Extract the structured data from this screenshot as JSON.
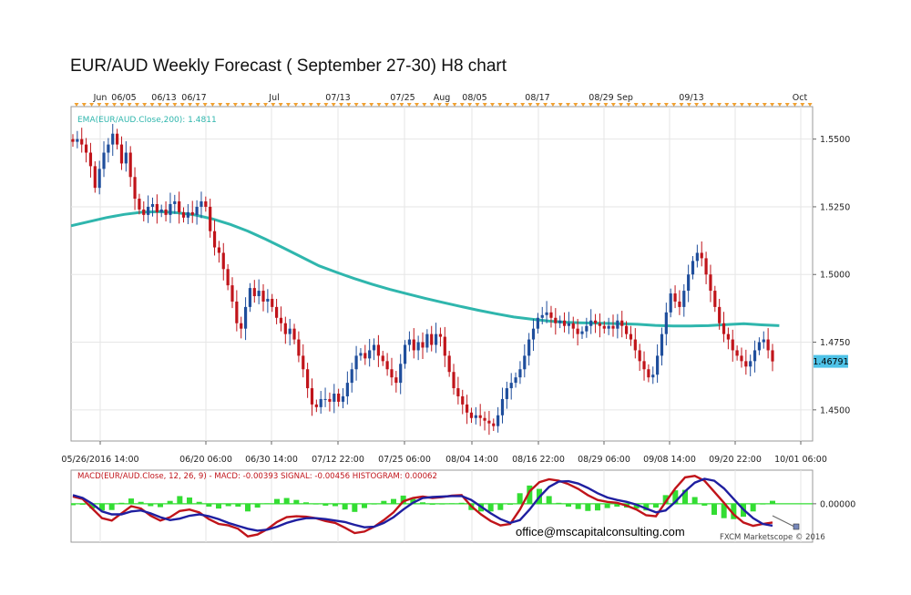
{
  "title": "EUR/AUD Weekly Forecast ( September 27-30) H8 chart",
  "colors": {
    "up": "#1f4e9c",
    "down": "#c0141a",
    "ema": "#2fb6ad",
    "macd": "#c0141a",
    "signal": "#1f1fa0",
    "histogram": "#33dd33",
    "price_badge": "#4fc3e8",
    "time_marker": "#f0a030"
  },
  "chart_data": [
    {
      "type": "candlestick",
      "title": "",
      "top_axis_labels": [
        "Jun",
        "06/05",
        "06/13",
        "06/17",
        "Jul",
        "07/13",
        "07/25",
        "Aug",
        "08/05",
        "08/17",
        "08/29",
        "Sep",
        "09/13",
        "Oct"
      ],
      "x_tick_labels": [
        "05/26/2016 14:00",
        "06/20 06:00",
        "06/30 14:00",
        "07/12 22:00",
        "07/25 06:00",
        "08/04 14:00",
        "08/16 22:00",
        "08/29 06:00",
        "09/08 14:00",
        "09/20 22:00",
        "10/01 06:00"
      ],
      "y_tick_labels": [
        "1.5500",
        "1.5250",
        "1.5000",
        "1.4750",
        "1.4500"
      ],
      "ylim": [
        1.4385,
        1.562
      ],
      "grid": true,
      "indicator_label": "EMA(EUR/AUD.Close,200): 1.4811",
      "last_price": "1.46791",
      "close_series": [
        1.549,
        1.55,
        1.548,
        1.545,
        1.54,
        1.532,
        1.539,
        1.545,
        1.548,
        1.552,
        1.548,
        1.541,
        1.545,
        1.536,
        1.528,
        1.524,
        1.522,
        1.525,
        1.526,
        1.523,
        1.524,
        1.522,
        1.526,
        1.527,
        1.523,
        1.521,
        1.523,
        1.522,
        1.525,
        1.527,
        1.525,
        1.516,
        1.51,
        1.508,
        1.502,
        1.496,
        1.49,
        1.482,
        1.48,
        1.488,
        1.495,
        1.492,
        1.494,
        1.49,
        1.491,
        1.488,
        1.484,
        1.482,
        1.478,
        1.48,
        1.476,
        1.47,
        1.465,
        1.458,
        1.452,
        1.451,
        1.454,
        1.454,
        1.453,
        1.456,
        1.453,
        1.455,
        1.46,
        1.465,
        1.47,
        1.471,
        1.469,
        1.472,
        1.474,
        1.47,
        1.468,
        1.465,
        1.462,
        1.46,
        1.467,
        1.474,
        1.476,
        1.472,
        1.475,
        1.473,
        1.478,
        1.474,
        1.478,
        1.477,
        1.47,
        1.464,
        1.458,
        1.455,
        1.452,
        1.449,
        1.447,
        1.448,
        1.447,
        1.446,
        1.445,
        1.444,
        1.448,
        1.454,
        1.458,
        1.46,
        1.462,
        1.465,
        1.47,
        1.476,
        1.48,
        1.484,
        1.485,
        1.486,
        1.484,
        1.482,
        1.483,
        1.481,
        1.482,
        1.48,
        1.478,
        1.479,
        1.481,
        1.483,
        1.482,
        1.481,
        1.48,
        1.481,
        1.48,
        1.483,
        1.481,
        1.478,
        1.476,
        1.472,
        1.468,
        1.465,
        1.462,
        1.463,
        1.47,
        1.478,
        1.486,
        1.493,
        1.49,
        1.488,
        1.494,
        1.5,
        1.505,
        1.508,
        1.506,
        1.5,
        1.494,
        1.488,
        1.482,
        1.478,
        1.476,
        1.472,
        1.47,
        1.468,
        1.466,
        1.468,
        1.472,
        1.475,
        1.476,
        1.472,
        1.4679
      ],
      "ema_series": [
        1.518,
        1.5195,
        1.521,
        1.5222,
        1.523,
        1.5232,
        1.5228,
        1.522,
        1.5205,
        1.5185,
        1.516,
        1.513,
        1.5098,
        1.5065,
        1.5032,
        1.5008,
        1.4985,
        1.4964,
        1.4945,
        1.4928,
        1.4912,
        1.4897,
        1.4882,
        1.4868,
        1.4855,
        1.4843,
        1.4835,
        1.4828,
        1.4823,
        1.4821,
        1.482,
        1.4818,
        1.4816,
        1.4812,
        1.481,
        1.481,
        1.4811,
        1.4815,
        1.4818,
        1.4814,
        1.4811
      ]
    },
    {
      "type": "line",
      "title": "",
      "indicator_label": "MACD(EUR/AUD.Close, 12, 26, 9) - MACD: -0.00393 SIGNAL: -0.00456 HISTOGRAM: 0.00062",
      "y_tick_labels": [
        "0.00000"
      ],
      "ylim": [
        -0.008,
        0.007
      ],
      "grid": true,
      "series": [
        {
          "name": "MACD",
          "values": [
            0.0015,
            0.001,
            -0.001,
            -0.003,
            -0.0035,
            -0.002,
            -0.0005,
            -0.001,
            -0.0025,
            -0.0035,
            -0.0028,
            -0.0015,
            -0.0012,
            -0.0018,
            -0.0032,
            -0.0042,
            -0.0045,
            -0.0052,
            -0.0068,
            -0.0064,
            -0.0053,
            -0.0038,
            -0.0028,
            -0.0026,
            -0.0027,
            -0.003,
            -0.0036,
            -0.004,
            -0.005,
            -0.0061,
            -0.0058,
            -0.0048,
            -0.0034,
            -0.0018,
            0.0005,
            0.0012,
            0.0015,
            0.0012,
            0.0014,
            0.0017,
            0.0018,
            -0.0005,
            -0.0022,
            -0.0036,
            -0.0045,
            -0.0042,
            -0.0012,
            0.0026,
            0.0045,
            0.0051,
            0.0048,
            0.0041,
            0.0031,
            0.0018,
            0.0008,
            0.0004,
            0.0002,
            -0.0004,
            -0.0012,
            -0.0024,
            -0.0026,
            0.0004,
            0.0032,
            0.0055,
            0.0058,
            0.0048,
            0.0025,
            0.0002,
            -0.0022,
            -0.0039,
            -0.0046,
            -0.0042,
            -0.0039
          ]
        },
        {
          "name": "SIGNAL",
          "values": [
            0.0018,
            0.0012,
            0.0,
            -0.0016,
            -0.0022,
            -0.0022,
            -0.0016,
            -0.0014,
            -0.002,
            -0.0028,
            -0.0034,
            -0.0031,
            -0.0025,
            -0.0022,
            -0.0026,
            -0.0032,
            -0.004,
            -0.0046,
            -0.0052,
            -0.0056,
            -0.0054,
            -0.0048,
            -0.004,
            -0.0034,
            -0.003,
            -0.003,
            -0.0032,
            -0.0035,
            -0.0038,
            -0.0044,
            -0.0049,
            -0.0048,
            -0.004,
            -0.0028,
            -0.0012,
            0.0002,
            0.0012,
            0.0014,
            0.0015,
            0.0016,
            0.0016,
            0.0008,
            -0.0006,
            -0.002,
            -0.0032,
            -0.004,
            -0.0034,
            -0.0012,
            0.0014,
            0.0035,
            0.0046,
            0.0047,
            0.0042,
            0.0033,
            0.0022,
            0.0013,
            0.0008,
            0.0004,
            -0.0002,
            -0.001,
            -0.0018,
            -0.0014,
            0.0004,
            0.0026,
            0.0044,
            0.0052,
            0.0048,
            0.0032,
            0.001,
            -0.0012,
            -0.003,
            -0.0042,
            -0.00456
          ]
        },
        {
          "name": "HISTOGRAM",
          "values": [
            -0.0003,
            -0.0002,
            -0.001,
            -0.0014,
            -0.0013,
            0.0002,
            0.0011,
            0.0004,
            -0.0005,
            -0.0007,
            0.0006,
            0.0016,
            0.0013,
            0.0004,
            -0.0006,
            -0.001,
            -0.0005,
            -0.0006,
            -0.0016,
            -0.0008,
            0.0001,
            0.001,
            0.0012,
            0.0008,
            0.0003,
            0.0,
            -0.0004,
            -0.0005,
            -0.0012,
            -0.0017,
            -0.0009,
            0.0,
            0.0006,
            0.001,
            0.0017,
            0.001,
            0.0003,
            -0.0002,
            -0.0001,
            0.0001,
            0.0002,
            -0.0013,
            -0.0016,
            -0.0016,
            -0.0013,
            -0.0002,
            0.0022,
            0.0038,
            0.0031,
            0.0016,
            0.0002,
            -0.0006,
            -0.0011,
            -0.0015,
            -0.0014,
            -0.0009,
            -0.0006,
            -0.0008,
            -0.001,
            -0.0014,
            -0.0008,
            0.0018,
            0.0028,
            0.0029,
            0.0014,
            -0.0004,
            -0.0023,
            -0.003,
            -0.0032,
            -0.0027,
            -0.0016,
            0.0,
            0.00062
          ]
        }
      ]
    }
  ],
  "watermark": {
    "email": "office@mscapitalconsulting.com",
    "copyright": "FXCM Marketscope © 2016"
  }
}
